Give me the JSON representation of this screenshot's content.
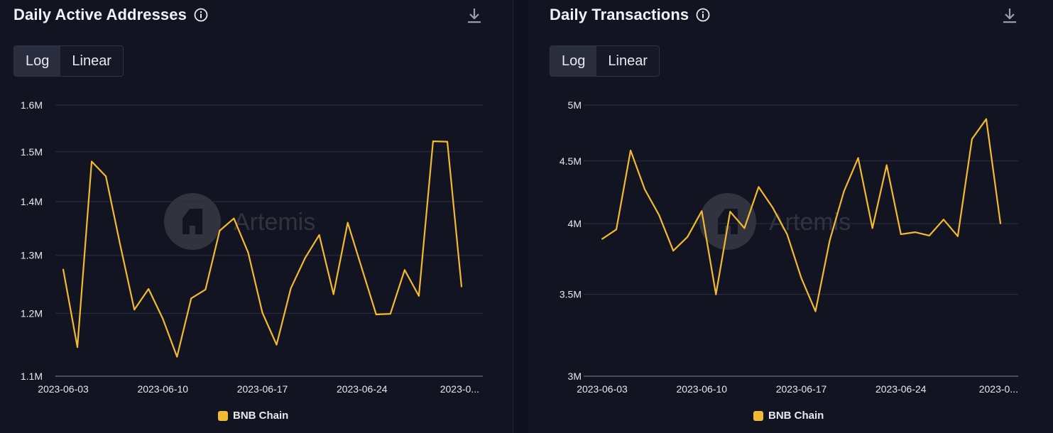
{
  "colors": {
    "series": "#f3ba2f",
    "background": "#121422",
    "grid": "#2c2f45",
    "axis_text": "#e8e9ee"
  },
  "watermark": "Artemis",
  "charts": [
    {
      "title": "Daily Active Addresses",
      "info_icon": "info-circle-icon",
      "download_icon": "download-icon",
      "scale_toggle": {
        "options": [
          "Log",
          "Linear"
        ],
        "selected": "Log"
      },
      "legend": "BNB Chain"
    },
    {
      "title": "Daily Transactions",
      "info_icon": "info-circle-icon",
      "download_icon": "download-icon",
      "scale_toggle": {
        "options": [
          "Log",
          "Linear"
        ],
        "selected": "Log"
      },
      "legend": "BNB Chain"
    }
  ],
  "chart_data": [
    {
      "type": "line",
      "title": "Daily Active Addresses",
      "y_scale": "log",
      "ylim": [
        1100000,
        1600000
      ],
      "yticks": [
        1100000,
        1200000,
        1300000,
        1400000,
        1500000,
        1600000
      ],
      "ytick_labels": [
        "1.1M",
        "1.2M",
        "1.3M",
        "1.4M",
        "1.5M",
        "1.6M"
      ],
      "xtick_labels": [
        "2023-06-03",
        "2023-06-10",
        "2023-06-17",
        "2023-06-24",
        "2023-0..."
      ],
      "xtick_dates": [
        "2023-06-03",
        "2023-06-10",
        "2023-06-17",
        "2023-06-24",
        "2023-07-01"
      ],
      "x": [
        "2023-06-03",
        "2023-06-04",
        "2023-06-05",
        "2023-06-06",
        "2023-06-07",
        "2023-06-08",
        "2023-06-09",
        "2023-06-10",
        "2023-06-11",
        "2023-06-12",
        "2023-06-13",
        "2023-06-14",
        "2023-06-15",
        "2023-06-16",
        "2023-06-17",
        "2023-06-18",
        "2023-06-19",
        "2023-06-20",
        "2023-06-21",
        "2023-06-22",
        "2023-06-23",
        "2023-06-24",
        "2023-06-25",
        "2023-06-26",
        "2023-06-27",
        "2023-06-28",
        "2023-06-29",
        "2023-06-30",
        "2023-07-01"
      ],
      "series": [
        {
          "name": "BNB Chain",
          "values": [
            1275000,
            1145000,
            1480000,
            1450000,
            1320000,
            1206000,
            1241000,
            1191000,
            1130000,
            1225000,
            1240000,
            1345000,
            1368000,
            1305000,
            1201000,
            1149000,
            1242000,
            1295000,
            1337000,
            1232000,
            1360000,
            1276000,
            1198000,
            1199000,
            1274000,
            1229000,
            1522000,
            1521000,
            1245000
          ]
        }
      ],
      "legend": "bottom-center",
      "grid": true
    },
    {
      "type": "line",
      "title": "Daily Transactions",
      "y_scale": "log",
      "ylim": [
        3000000,
        5000000
      ],
      "yticks": [
        3000000,
        3500000,
        4000000,
        4500000,
        5000000
      ],
      "ytick_labels": [
        "3M",
        "3.5M",
        "4M",
        "4.5M",
        "5M"
      ],
      "xtick_labels": [
        "2023-06-03",
        "2023-06-10",
        "2023-06-17",
        "2023-06-24",
        "2023-0..."
      ],
      "xtick_dates": [
        "2023-06-03",
        "2023-06-10",
        "2023-06-17",
        "2023-06-24",
        "2023-07-01"
      ],
      "x": [
        "2023-06-03",
        "2023-06-04",
        "2023-06-05",
        "2023-06-06",
        "2023-06-07",
        "2023-06-08",
        "2023-06-09",
        "2023-06-10",
        "2023-06-11",
        "2023-06-12",
        "2023-06-13",
        "2023-06-14",
        "2023-06-15",
        "2023-06-16",
        "2023-06-17",
        "2023-06-18",
        "2023-06-19",
        "2023-06-20",
        "2023-06-21",
        "2023-06-22",
        "2023-06-23",
        "2023-06-24",
        "2023-06-25",
        "2023-06-26",
        "2023-06-27",
        "2023-06-28",
        "2023-06-29",
        "2023-06-30",
        "2023-07-01"
      ],
      "series": [
        {
          "name": "BNB Chain",
          "values": [
            3885000,
            3955000,
            4590000,
            4265000,
            4065000,
            3800000,
            3900000,
            4095000,
            3500000,
            4090000,
            3965000,
            4285000,
            4120000,
            3920000,
            3610000,
            3390000,
            3875000,
            4250000,
            4525000,
            3965000,
            4465000,
            3920000,
            3935000,
            3910000,
            4030000,
            3905000,
            4690000,
            4870000,
            4000000
          ]
        }
      ],
      "legend": "bottom-center",
      "grid": true
    }
  ]
}
